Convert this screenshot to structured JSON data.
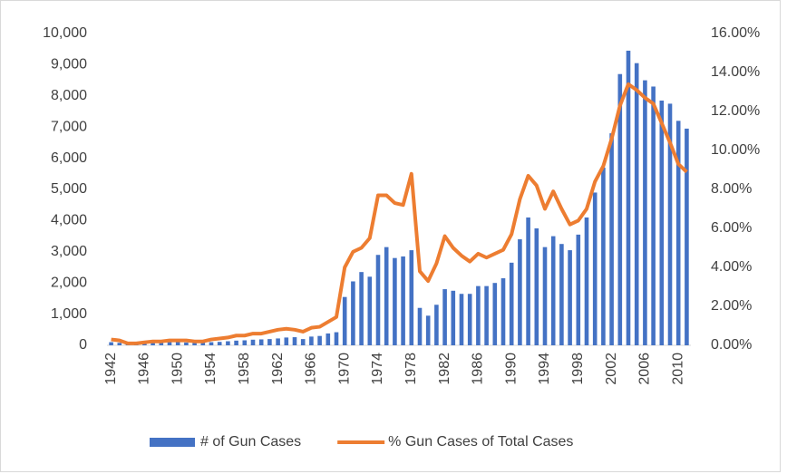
{
  "chart_data": {
    "type": "bar-line",
    "categories": [
      "1942",
      null,
      null,
      null,
      "1946",
      null,
      null,
      null,
      "1950",
      null,
      null,
      null,
      "1954",
      null,
      null,
      null,
      "1958",
      null,
      null,
      null,
      "1962",
      null,
      null,
      null,
      "1966",
      null,
      null,
      null,
      "1970",
      null,
      null,
      null,
      "1974",
      null,
      null,
      null,
      "1978",
      null,
      null,
      null,
      "1982",
      null,
      null,
      null,
      "1986",
      null,
      null,
      null,
      "1990",
      null,
      null,
      null,
      "1994",
      null,
      null,
      null,
      "1998",
      null,
      null,
      null,
      "2002",
      null,
      null,
      null,
      "2006",
      null,
      null,
      null,
      "2010",
      null
    ],
    "series": [
      {
        "name": "# of Gun Cases",
        "color": "#4472c4",
        "kind": "bar",
        "axis": "y",
        "values": [
          100,
          80,
          50,
          30,
          60,
          80,
          90,
          100,
          110,
          90,
          80,
          90,
          100,
          110,
          130,
          150,
          160,
          180,
          190,
          200,
          220,
          250,
          260,
          200,
          280,
          300,
          380,
          420,
          1550,
          2050,
          2350,
          2200,
          2900,
          3150,
          2800,
          2850,
          3050,
          1200,
          950,
          1300,
          1800,
          1750,
          1650,
          1650,
          1900,
          1900,
          2000,
          2150,
          2650,
          3400,
          4100,
          3750,
          3150,
          3500,
          3250,
          3050,
          3550,
          4100,
          4900,
          5700,
          6800,
          8700,
          9450,
          9050,
          8500,
          8300,
          7850,
          7750,
          7200,
          6950
        ]
      },
      {
        "name": "% Gun Cases of Total Cases",
        "color": "#ed7d31",
        "kind": "line",
        "axis": "y2",
        "values": [
          0.3,
          0.25,
          0.1,
          0.1,
          0.15,
          0.2,
          0.2,
          0.25,
          0.25,
          0.25,
          0.2,
          0.2,
          0.3,
          0.35,
          0.4,
          0.5,
          0.5,
          0.6,
          0.6,
          0.7,
          0.8,
          0.85,
          0.8,
          0.7,
          0.9,
          0.95,
          1.2,
          1.45,
          4.0,
          4.8,
          5.0,
          5.5,
          7.7,
          7.7,
          7.3,
          7.2,
          8.8,
          3.8,
          3.3,
          4.2,
          5.6,
          5.0,
          4.6,
          4.3,
          4.7,
          4.5,
          4.7,
          4.9,
          5.7,
          7.5,
          8.7,
          8.2,
          7.0,
          7.9,
          7.0,
          6.2,
          6.4,
          7.0,
          8.4,
          9.2,
          10.6,
          12.3,
          13.4,
          13.1,
          12.7,
          12.4,
          11.4,
          10.4,
          9.3,
          8.9
        ]
      }
    ],
    "ylim": [
      0,
      10000
    ],
    "yticks": [
      0,
      {
        "value": 1000,
        "label": "1,000"
      },
      {
        "value": 2000,
        "label": "2,000"
      },
      {
        "value": 3000,
        "label": "3,000"
      },
      {
        "value": 4000,
        "label": "4,000"
      },
      {
        "value": 5000,
        "label": "5,000"
      },
      {
        "value": 6000,
        "label": "6,000"
      },
      {
        "value": 7000,
        "label": "7,000"
      },
      {
        "value": 8000,
        "label": "8,000"
      },
      {
        "value": 9000,
        "label": "9,000"
      },
      {
        "value": 10000,
        "label": "10,000"
      }
    ],
    "y2lim": [
      0,
      16
    ],
    "y2ticks": [
      {
        "value": 0,
        "label": "0.00%"
      },
      {
        "value": 2,
        "label": "2.00%"
      },
      {
        "value": 4,
        "label": "4.00%"
      },
      {
        "value": 6,
        "label": "6.00%"
      },
      {
        "value": 8,
        "label": "8.00%"
      },
      {
        "value": 10,
        "label": "10.00%"
      },
      {
        "value": 12,
        "label": "12.00%"
      },
      {
        "value": 14,
        "label": "14.00%"
      },
      {
        "value": 16,
        "label": "16.00%"
      }
    ],
    "legend": "bottom"
  }
}
